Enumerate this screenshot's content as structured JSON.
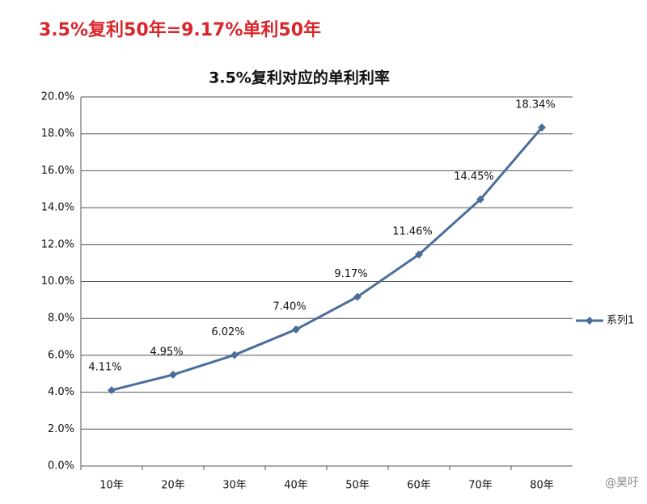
{
  "header": "3.5%复利50年=9.17%单利50年",
  "watermark": "@昊吁",
  "chart_data": {
    "type": "line",
    "title": "3.5%复利对应的单利利率",
    "categories": [
      "10年",
      "20年",
      "30年",
      "40年",
      "50年",
      "60年",
      "70年",
      "80年"
    ],
    "series": [
      {
        "name": "系列1",
        "color": "#4a6d9c",
        "values": [
          4.11,
          4.95,
          6.02,
          7.4,
          9.17,
          11.46,
          14.45,
          18.34
        ],
        "value_labels": [
          "4.11%",
          "4.95%",
          "6.02%",
          "7.40%",
          "9.17%",
          "11.46%",
          "14.45%",
          "18.34%"
        ]
      }
    ],
    "ylim": [
      0,
      20
    ],
    "yticks": [
      {
        "value": 0,
        "label": "0.0%"
      },
      {
        "value": 2,
        "label": "2.0%"
      },
      {
        "value": 4,
        "label": "4.0%"
      },
      {
        "value": 6,
        "label": "6.0%"
      },
      {
        "value": 8,
        "label": "8.0%"
      },
      {
        "value": 10,
        "label": "10.0%"
      },
      {
        "value": 12,
        "label": "12.0%"
      },
      {
        "value": 14,
        "label": "14.0%"
      },
      {
        "value": 16,
        "label": "16.0%"
      },
      {
        "value": 18,
        "label": "18.0%"
      },
      {
        "value": 20,
        "label": "20.0%"
      }
    ],
    "grid": true,
    "legend": "right"
  }
}
